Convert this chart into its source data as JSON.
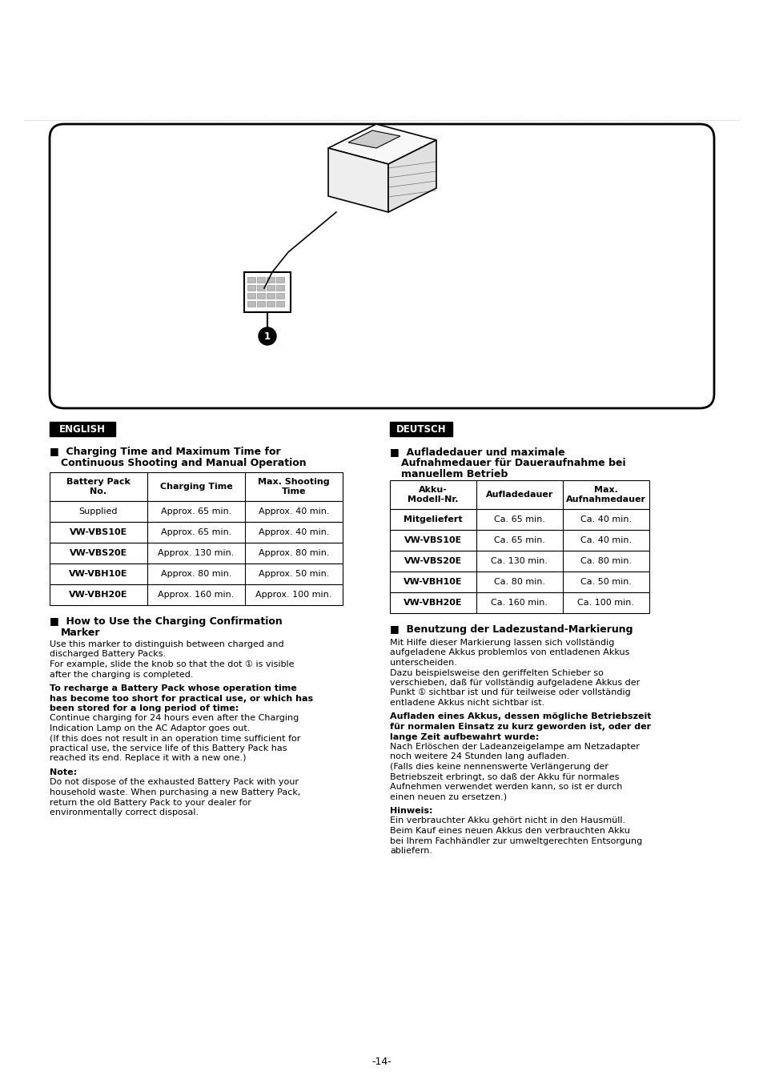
{
  "bg_color": "#ffffff",
  "page_number": "-14-",
  "english_label": "ENGLISH",
  "deutsch_label": "DEUTSCH",
  "en_table_headers": [
    "Battery Pack\nNo.",
    "Charging Time",
    "Max. Shooting\nTime"
  ],
  "en_table_rows": [
    [
      "Supplied",
      "Approx. 65 min.",
      "Approx. 40 min."
    ],
    [
      "VW-VBS10E",
      "Approx. 65 min.",
      "Approx. 40 min."
    ],
    [
      "VW-VBS20E",
      "Approx. 130 min.",
      "Approx. 80 min."
    ],
    [
      "VW-VBH10E",
      "Approx. 80 min.",
      "Approx. 50 min."
    ],
    [
      "VW-VBH20E",
      "Approx. 160 min.",
      "Approx. 100 min."
    ]
  ],
  "de_table_headers": [
    "Akku-\nModell-Nr.",
    "Aufladedauer",
    "Max.\nAufnahmedauer"
  ],
  "de_table_rows": [
    [
      "Mitgeliefert",
      "Ca. 65 min.",
      "Ca. 40 min."
    ],
    [
      "VW-VBS10E",
      "Ca. 65 min.",
      "Ca. 40 min."
    ],
    [
      "VW-VBS20E",
      "Ca. 130 min.",
      "Ca. 80 min."
    ],
    [
      "VW-VBH10E",
      "Ca. 80 min.",
      "Ca. 50 min."
    ],
    [
      "VW-VBH20E",
      "Ca. 160 min.",
      "Ca. 100 min."
    ]
  ],
  "en_section2_body": [
    {
      "text": "Use this marker to distinguish between charged and",
      "bold": false
    },
    {
      "text": "discharged Battery Packs.",
      "bold": false
    },
    {
      "text": "For example, slide the knob so that the dot ⑨0 is visible",
      "bold": false
    },
    {
      "text": "after the charging is completed.",
      "bold": false
    },
    {
      "text": "",
      "bold": false
    },
    {
      "text": "To recharge a Battery Pack whose operation time",
      "bold": true
    },
    {
      "text": "has become too short for practical use, or which has",
      "bold": true
    },
    {
      "text": "been stored for a long period of time:",
      "bold": true
    },
    {
      "text": "Continue charging for 24 hours even after the Charging",
      "bold": false
    },
    {
      "text": "Indication Lamp on the AC Adaptor goes out.",
      "bold": false
    },
    {
      "text": "(If this does not result in an operation time sufficient for",
      "bold": false
    },
    {
      "text": "practical use, the service life of this Battery Pack has",
      "bold": false
    },
    {
      "text": "reached its end. Replace it with a new one.)",
      "bold": false
    },
    {
      "text": "",
      "bold": false
    },
    {
      "text": "Note:",
      "bold": true
    },
    {
      "text": "Do not dispose of the exhausted Battery Pack with your",
      "bold": false
    },
    {
      "text": "household waste. When purchasing a new Battery Pack,",
      "bold": false
    },
    {
      "text": "return the old Battery Pack to your dealer for",
      "bold": false
    },
    {
      "text": "environmentally correct disposal.",
      "bold": false
    }
  ],
  "de_section2_body": [
    {
      "text": "Mit Hilfe dieser Markierung lassen sich vollständig",
      "bold": false
    },
    {
      "text": "aufgeladene Akkus problemlos von entladenen Akkus",
      "bold": false
    },
    {
      "text": "unterscheiden.",
      "bold": false
    },
    {
      "text": "Dazu beispielsweise den geriffelten Schieber so",
      "bold": false
    },
    {
      "text": "verschieben, daß für vollständig aufgeladene Akkus der",
      "bold": false
    },
    {
      "text": "Punkt ⑨0 sichtbar ist und für teilweise oder vollständig",
      "bold": false
    },
    {
      "text": "entladene Akkus nicht sichtbar ist.",
      "bold": false
    },
    {
      "text": "",
      "bold": false
    },
    {
      "text": "Aufladen eines Akkus, dessen mögliche Betriebszeit",
      "bold": true
    },
    {
      "text": "für normalen Einsatz zu kurz geworden ist, oder der",
      "bold": true
    },
    {
      "text": "lange Zeit aufbewahrt wurde:",
      "bold": true
    },
    {
      "text": "Nach Erlöschen der Ladeanzeigelampe am Netzadapter",
      "bold": false
    },
    {
      "text": "noch weitere 24 Stunden lang aufladen.",
      "bold": false
    },
    {
      "text": "(Falls dies keine nennenswerte Verlängerung der",
      "bold": false
    },
    {
      "text": "Betriebszeit erbringt, so daß der Akku für normales",
      "bold": false
    },
    {
      "text": "Aufnehmen verwendet werden kann, so ist er durch",
      "bold": false
    },
    {
      "text": "einen neuen zu ersetzen.)",
      "bold": false
    },
    {
      "text": "",
      "bold": false
    },
    {
      "text": "Hinweis:",
      "bold": true
    },
    {
      "text": "Ein verbrauchter Akku gehört nicht in den Hausmüll.",
      "bold": false
    },
    {
      "text": "Beim Kauf eines neuen Akkus den verbrauchten Akku",
      "bold": false
    },
    {
      "text": "bei Ihrem Fachhändler zur umweltgerechten Entsorgung",
      "bold": false
    },
    {
      "text": "abliefern.",
      "bold": false
    }
  ]
}
